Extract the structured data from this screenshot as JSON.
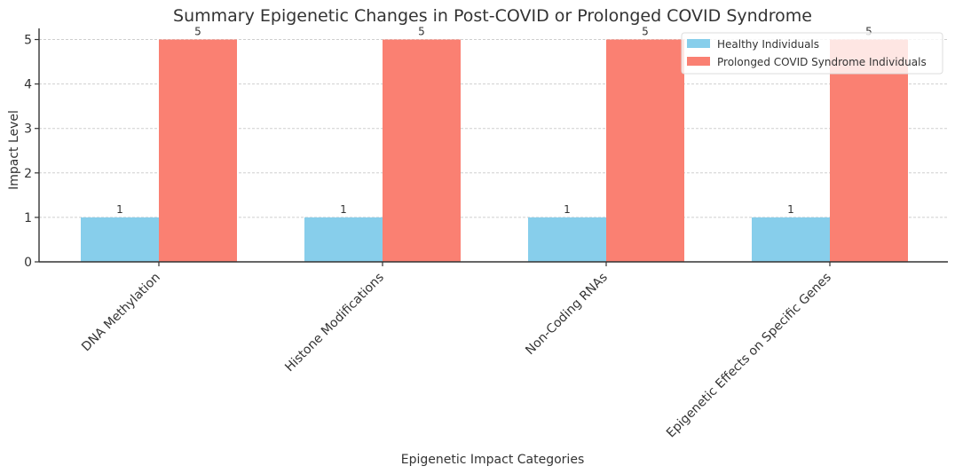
{
  "chart_data": {
    "type": "bar",
    "title": "Summary Epigenetic Changes in Post-COVID or Prolonged COVID Syndrome",
    "xlabel": "Epigenetic Impact Categories",
    "ylabel": "Impact Level",
    "categories": [
      "DNA Methylation",
      "Histone Modifications",
      "Non-Coding RNAs",
      "Epigenetic Effects on Specific Genes"
    ],
    "series": [
      {
        "name": "Healthy Individuals",
        "values": [
          1,
          1,
          1,
          1
        ],
        "color": "#87ceeb"
      },
      {
        "name": "Prolonged COVID Syndrome Individuals",
        "values": [
          5,
          5,
          5,
          5
        ],
        "color": "#fa8072"
      }
    ],
    "ylim": [
      0,
      5.25
    ],
    "yticks": [
      0,
      1,
      2,
      3,
      4,
      5
    ],
    "grid": true,
    "legend_position": "top-right"
  }
}
